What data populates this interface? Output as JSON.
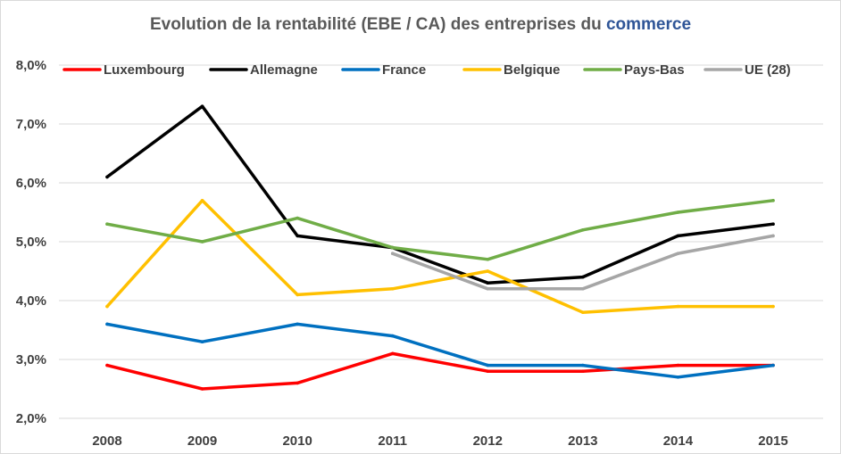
{
  "chart_data": {
    "type": "line",
    "title": {
      "prefix": "Evolution de la rentabilité (EBE / CA) des entreprises du ",
      "accent": "commerce",
      "accent_color": "#2f5597"
    },
    "xlabel": "",
    "ylabel": "",
    "categories": [
      "2008",
      "2009",
      "2010",
      "2011",
      "2012",
      "2013",
      "2014",
      "2015"
    ],
    "ylim": [
      0.02,
      0.08
    ],
    "yticks": [
      {
        "value": 0.02,
        "label": "2,0%"
      },
      {
        "value": 0.03,
        "label": "3,0%"
      },
      {
        "value": 0.04,
        "label": "4,0%"
      },
      {
        "value": 0.05,
        "label": "5,0%"
      },
      {
        "value": 0.06,
        "label": "6,0%"
      },
      {
        "value": 0.07,
        "label": "7,0%"
      },
      {
        "value": 0.08,
        "label": "8,0%"
      }
    ],
    "grid": true,
    "legend_position": "top",
    "series": [
      {
        "name": "Luxembourg",
        "color": "#ff0000",
        "values": [
          0.029,
          0.025,
          0.026,
          0.031,
          0.028,
          0.028,
          0.029,
          0.029
        ]
      },
      {
        "name": "Allemagne",
        "color": "#000000",
        "values": [
          0.061,
          0.073,
          0.051,
          0.049,
          0.043,
          0.044,
          0.051,
          0.053
        ]
      },
      {
        "name": "France",
        "color": "#0070c0",
        "values": [
          0.036,
          0.033,
          0.036,
          0.034,
          0.029,
          0.029,
          0.027,
          0.029
        ]
      },
      {
        "name": "Belgique",
        "color": "#ffc000",
        "values": [
          0.039,
          0.057,
          0.041,
          0.042,
          0.045,
          0.038,
          0.039,
          0.039
        ]
      },
      {
        "name": "Pays-Bas",
        "color": "#70ad47",
        "values": [
          0.053,
          0.05,
          0.054,
          0.049,
          0.047,
          0.052,
          0.055,
          0.057
        ]
      },
      {
        "name": "UE (28)",
        "color": "#a6a6a6",
        "values": [
          null,
          null,
          null,
          0.048,
          0.042,
          0.042,
          0.048,
          0.051
        ]
      }
    ]
  }
}
